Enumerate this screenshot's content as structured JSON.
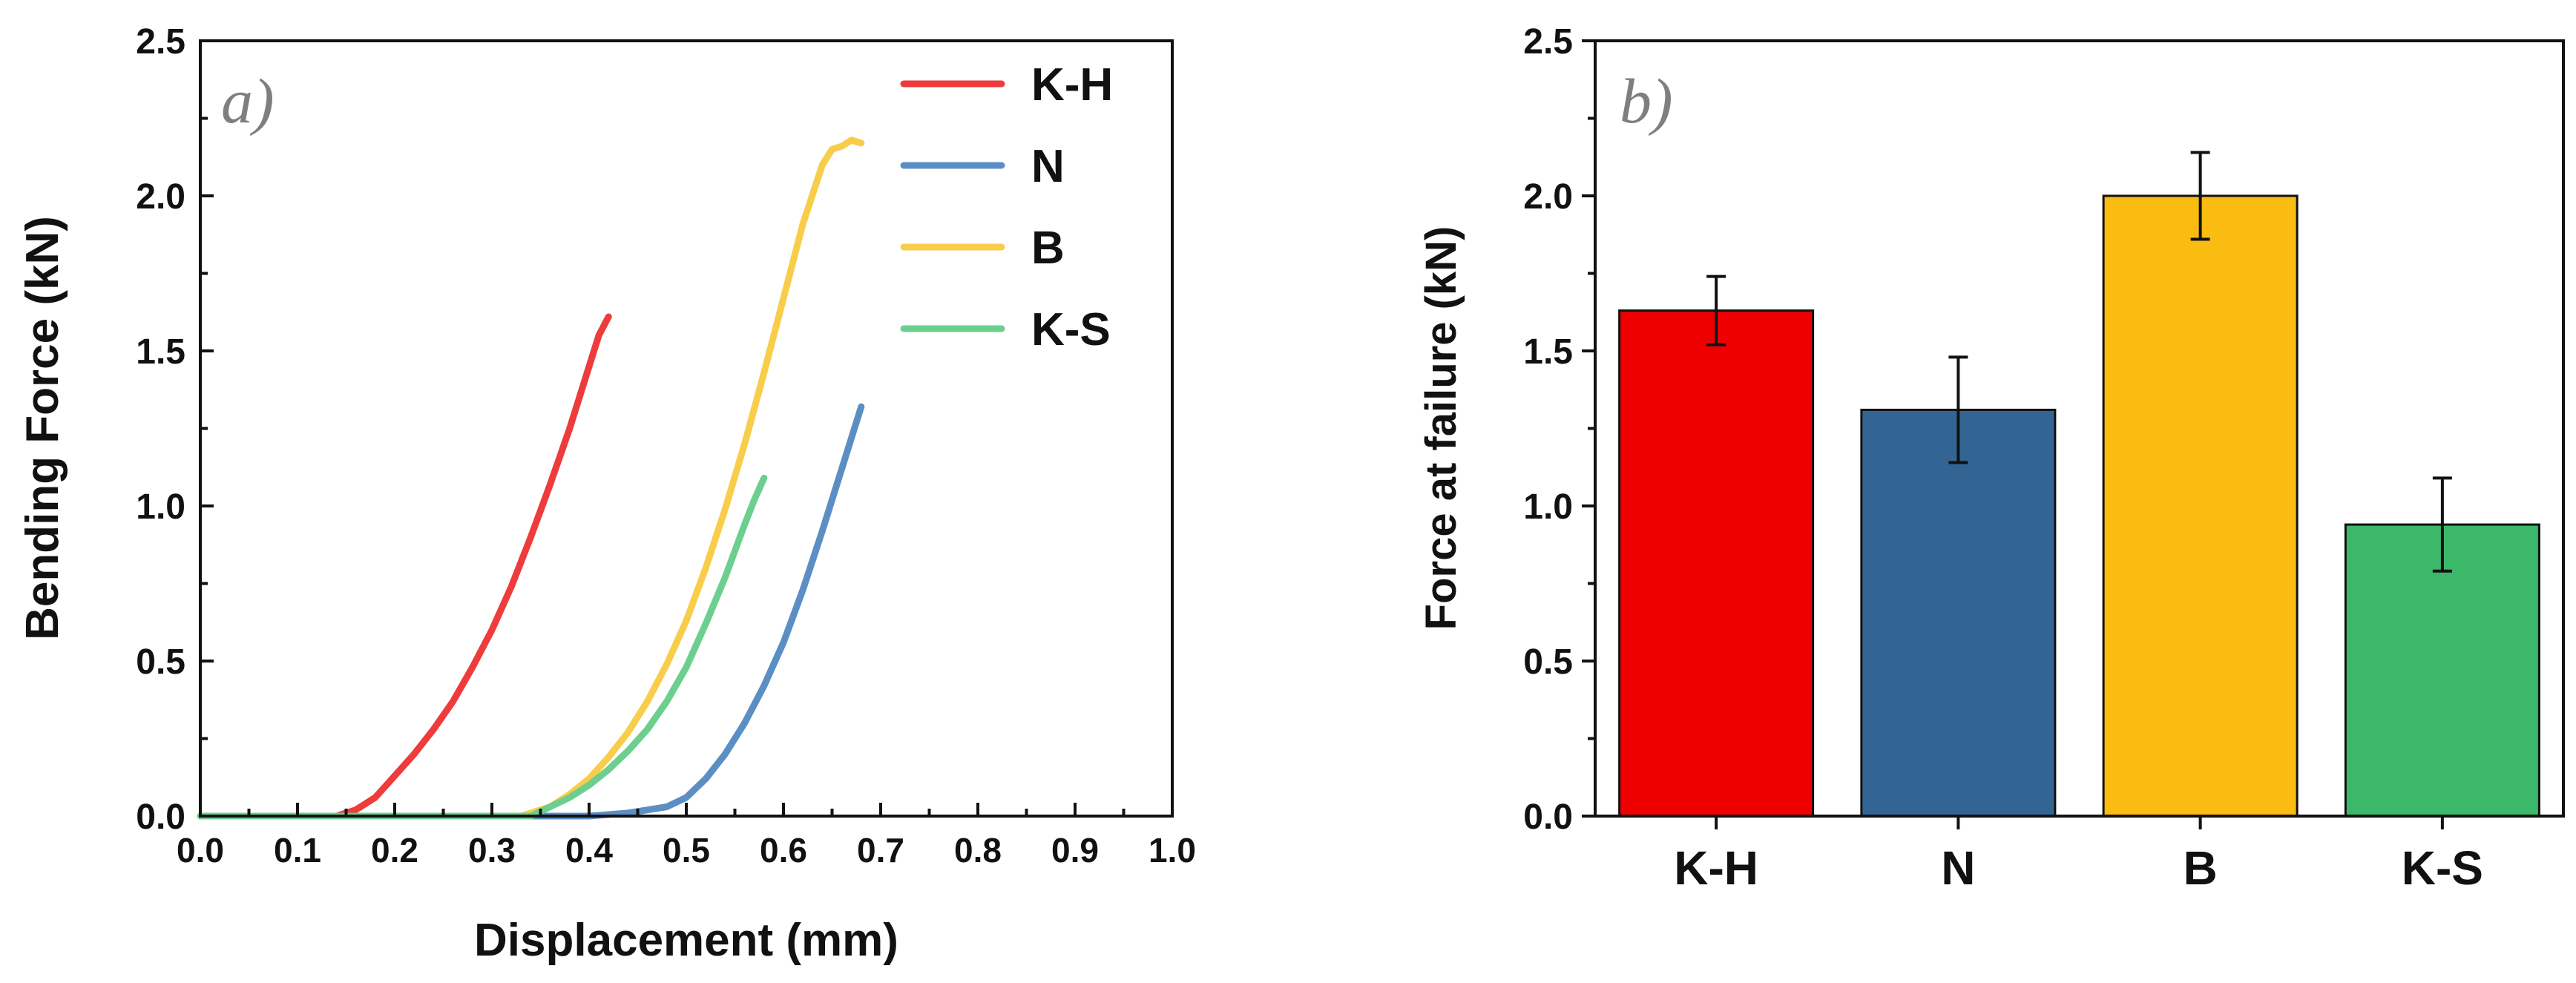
{
  "chart_data": [
    {
      "panel": "a)",
      "type": "line",
      "xlabel": "Displacement (mm)",
      "ylabel": "Bending Force (kN)",
      "xlim": [
        0.0,
        1.0
      ],
      "ylim": [
        0.0,
        2.5
      ],
      "xticks": [
        "0.0",
        "0.1",
        "0.2",
        "0.3",
        "0.4",
        "0.5",
        "0.6",
        "0.7",
        "0.8",
        "0.9",
        "1.0"
      ],
      "yticks": [
        "0.0",
        "0.5",
        "1.0",
        "1.5",
        "2.0",
        "2.5"
      ],
      "legend_position": "top-right",
      "series": [
        {
          "name": "K-H",
          "color": "#ee3b3b",
          "x": [
            0.0,
            0.14,
            0.16,
            0.18,
            0.2,
            0.22,
            0.24,
            0.26,
            0.28,
            0.3,
            0.32,
            0.34,
            0.36,
            0.38,
            0.4,
            0.41,
            0.42
          ],
          "y": [
            0.0,
            0.0,
            0.02,
            0.06,
            0.13,
            0.2,
            0.28,
            0.37,
            0.48,
            0.6,
            0.74,
            0.9,
            1.07,
            1.25,
            1.45,
            1.55,
            1.61
          ]
        },
        {
          "name": "N",
          "color": "#5b8fc4",
          "x": [
            0.0,
            0.4,
            0.44,
            0.48,
            0.5,
            0.52,
            0.54,
            0.56,
            0.58,
            0.6,
            0.62,
            0.64,
            0.66,
            0.68
          ],
          "y": [
            0.0,
            0.0,
            0.01,
            0.03,
            0.06,
            0.12,
            0.2,
            0.3,
            0.42,
            0.56,
            0.73,
            0.92,
            1.12,
            1.32
          ]
        },
        {
          "name": "B",
          "color": "#f8cd4a",
          "x": [
            0.0,
            0.33,
            0.36,
            0.38,
            0.4,
            0.42,
            0.44,
            0.46,
            0.48,
            0.5,
            0.52,
            0.54,
            0.56,
            0.58,
            0.6,
            0.62,
            0.64,
            0.65,
            0.66,
            0.67,
            0.68
          ],
          "y": [
            0.0,
            0.0,
            0.03,
            0.07,
            0.12,
            0.19,
            0.27,
            0.37,
            0.49,
            0.63,
            0.8,
            0.99,
            1.2,
            1.43,
            1.67,
            1.91,
            2.1,
            2.15,
            2.16,
            2.18,
            2.17
          ]
        },
        {
          "name": "K-S",
          "color": "#6ccf8e",
          "x": [
            0.0,
            0.34,
            0.36,
            0.38,
            0.4,
            0.42,
            0.44,
            0.46,
            0.48,
            0.5,
            0.52,
            0.54,
            0.56,
            0.57,
            0.58
          ],
          "y": [
            0.0,
            0.0,
            0.03,
            0.06,
            0.1,
            0.15,
            0.21,
            0.28,
            0.37,
            0.48,
            0.62,
            0.77,
            0.94,
            1.02,
            1.09
          ]
        }
      ]
    },
    {
      "panel": "b)",
      "type": "bar",
      "xlabel": "",
      "ylabel": "Force at failure (kN)",
      "ylim": [
        0.0,
        2.5
      ],
      "yticks": [
        "0.0",
        "0.5",
        "1.0",
        "1.5",
        "2.0",
        "2.5"
      ],
      "categories": [
        "K-H",
        "N",
        "B",
        "K-S"
      ],
      "values": [
        1.63,
        1.31,
        2.0,
        0.94
      ],
      "errors": [
        0.11,
        0.17,
        0.14,
        0.15
      ],
      "colors": [
        "#ee0000",
        "#336594",
        "#fbbc12",
        "#3cb86a"
      ]
    }
  ]
}
